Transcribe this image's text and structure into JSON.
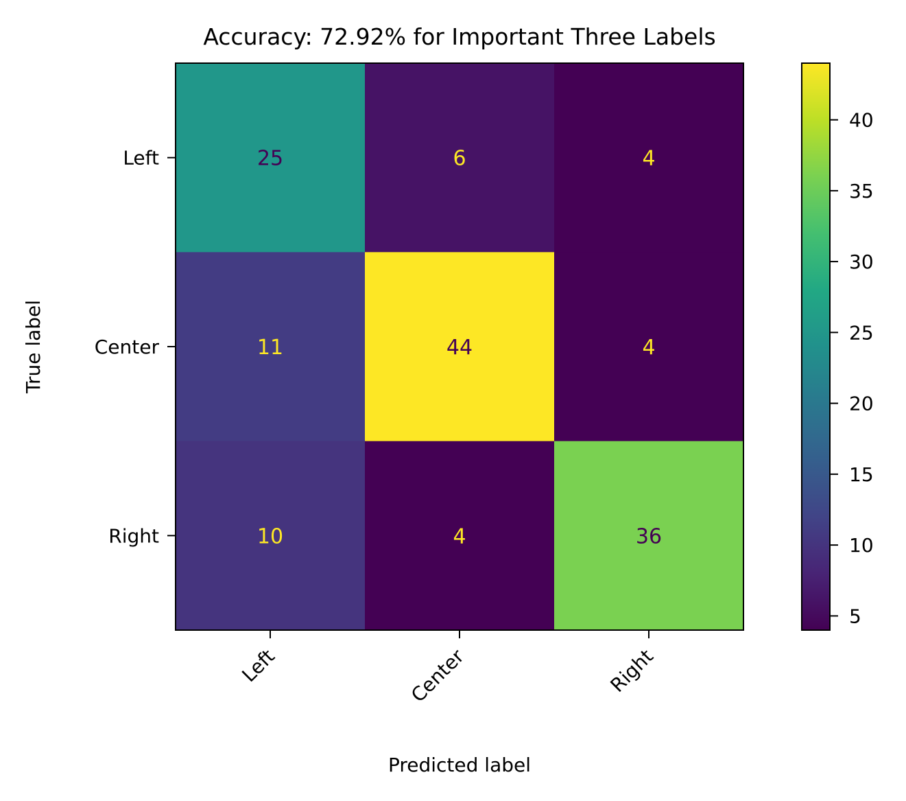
{
  "chart_data": {
    "type": "heatmap",
    "title": "Accuracy: 72.92% for Important Three Labels",
    "xlabel": "Predicted label",
    "ylabel": "True label",
    "x_categories": [
      "Left",
      "Center",
      "Right"
    ],
    "y_categories": [
      "Left",
      "Center",
      "Right"
    ],
    "values": [
      [
        25,
        6,
        4
      ],
      [
        11,
        44,
        4
      ],
      [
        10,
        4,
        36
      ]
    ],
    "colormap": "viridis",
    "colorbar": {
      "range": [
        4,
        44
      ],
      "ticks": [
        5,
        10,
        15,
        20,
        25,
        30,
        35,
        40
      ]
    },
    "text_colors": {
      "dark_cell": "#fde725",
      "light_cell": "#440154"
    },
    "grid": false
  }
}
